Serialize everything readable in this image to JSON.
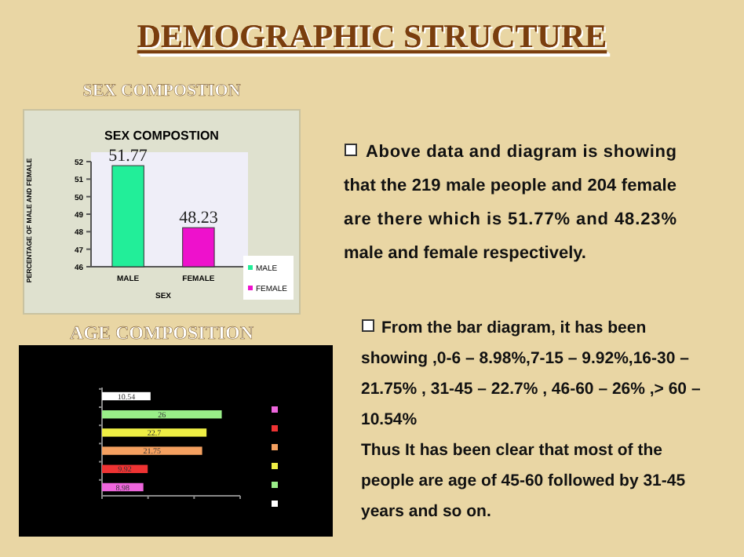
{
  "chart_data": [
    {
      "type": "bar",
      "subtitle": "SEX COMPOSTION",
      "title": "SEX COMPOSTION",
      "categories": [
        "MALE",
        "FEMALE"
      ],
      "series": [
        {
          "name": "MALE",
          "color": "#22ee99",
          "values": [
            51.77,
            null
          ]
        },
        {
          "name": "FEMALE",
          "color": "#ee11cc",
          "values": [
            null,
            48.23
          ]
        }
      ],
      "ylim": [
        46,
        52
      ],
      "yticks": [
        46,
        47,
        48,
        49,
        50,
        51,
        52
      ],
      "xlabel": "SEX",
      "ylabel": "PERCENTAGE OF MALE AND FEMALE",
      "data_labels": true,
      "legend": "bottom right",
      "grid": false
    },
    {
      "type": "bar",
      "orientation": "horizontal",
      "title": "AGE COMPOSITION",
      "categories": [
        null,
        null,
        null,
        null,
        null,
        null
      ],
      "values": [
        10.54,
        26,
        22.7,
        21.75,
        9.92,
        8.98
      ],
      "colors": [
        "#ffffff",
        "#99ee88",
        "#eeee44",
        "#f4a060",
        "#ee3333",
        "#ee66dd"
      ],
      "xlim": [
        0,
        30
      ],
      "xticks": [
        {
          "value": 0,
          "label": null
        },
        {
          "value": 10,
          "label": null
        },
        {
          "value": 20,
          "label": null
        },
        {
          "value": 30,
          "label": null
        }
      ],
      "data_labels": true,
      "grid": false
    },
    {
      "type": "other",
      "title": "DEMOGRAPHIC STRUCTURE",
      "annotations": [
        "Above data and diagram is showing that the 219 male people and 204 female are there which is 51.77% and 48.23% male and female respectively.",
        "From the bar diagram, it has been showing ,0-6 – 8.98%,7-15 – 9.92%,16-30 – 21.75% , 31-45 – 22.7% , 46-60 – 26% ,> 60 – 10.54%",
        "Thus It has been clear that most of the people are age of 45-60 followed by 31-45 years and so on."
      ]
    }
  ]
}
